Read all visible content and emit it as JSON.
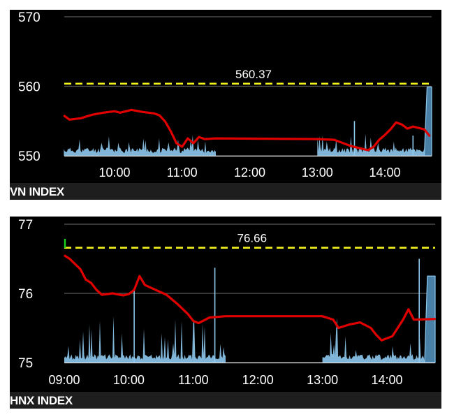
{
  "chart_data": [
    {
      "type": "line",
      "title": "VN INDEX",
      "reference_value": 560.37,
      "reference_label": "560.37",
      "ylim": [
        550,
        570
      ],
      "yticks": [
        "550",
        "560",
        "570"
      ],
      "xticks": [
        "10:00",
        "11:00",
        "12:00",
        "13:00",
        "14:00"
      ],
      "series": [
        {
          "kind": "index",
          "color": "#e00000",
          "points": [
            [
              "09:15",
              555.8
            ],
            [
              "09:20",
              555.2
            ],
            [
              "09:30",
              555.4
            ],
            [
              "09:40",
              555.9
            ],
            [
              "09:50",
              556.2
            ],
            [
              "10:00",
              556.4
            ],
            [
              "10:05",
              556.2
            ],
            [
              "10:15",
              556.6
            ],
            [
              "10:25",
              556.3
            ],
            [
              "10:35",
              556.1
            ],
            [
              "10:40",
              555.8
            ],
            [
              "10:45",
              554.9
            ],
            [
              "10:50",
              553.5
            ],
            [
              "10:55",
              551.8
            ],
            [
              "11:00",
              551.3
            ],
            [
              "11:05",
              552.5
            ],
            [
              "11:10",
              551.8
            ],
            [
              "11:15",
              552.7
            ],
            [
              "11:20",
              552.4
            ],
            [
              "11:30",
              552.5
            ],
            [
              "13:00",
              552.4
            ],
            [
              "13:15",
              552.3
            ],
            [
              "13:30",
              551.4
            ],
            [
              "13:40",
              551.0
            ],
            [
              "13:45",
              550.8
            ],
            [
              "13:50",
              551.3
            ],
            [
              "13:55",
              552.3
            ],
            [
              "14:00",
              553.0
            ],
            [
              "14:05",
              553.8
            ],
            [
              "14:10",
              554.8
            ],
            [
              "14:15",
              554.5
            ],
            [
              "14:20",
              553.9
            ],
            [
              "14:25",
              554.2
            ],
            [
              "14:35",
              553.8
            ],
            [
              "14:40",
              552.8
            ]
          ]
        },
        {
          "kind": "volume",
          "color": "#8ec9ee",
          "sessions": [
            [
              "09:15",
              "11:30"
            ],
            [
              "13:00",
              "14:35"
            ]
          ],
          "spikes": [
            [
              "13:33",
              555.0
            ],
            [
              "14:25",
              552.9
            ]
          ],
          "close_volume": [
            "14:35",
            "14:45",
            559.9
          ]
        }
      ]
    },
    {
      "type": "line",
      "title": "HNX INDEX",
      "reference_value": 76.66,
      "reference_label": "76.66",
      "ylim": [
        75,
        77
      ],
      "yticks": [
        "75",
        "76",
        "77"
      ],
      "xticks": [
        "09:00",
        "10:00",
        "11:00",
        "12:00",
        "13:00",
        "14:00"
      ],
      "series": [
        {
          "kind": "index",
          "color": "#e00000",
          "points": [
            [
              "09:00",
              76.55
            ],
            [
              "09:05",
              76.5
            ],
            [
              "09:15",
              76.35
            ],
            [
              "09:20",
              76.2
            ],
            [
              "09:25",
              76.15
            ],
            [
              "09:30",
              76.05
            ],
            [
              "09:35",
              75.98
            ],
            [
              "09:45",
              76.0
            ],
            [
              "09:55",
              75.97
            ],
            [
              "10:00",
              75.99
            ],
            [
              "10:05",
              76.05
            ],
            [
              "10:10",
              76.25
            ],
            [
              "10:15",
              76.12
            ],
            [
              "10:25",
              76.05
            ],
            [
              "10:35",
              75.98
            ],
            [
              "10:45",
              75.85
            ],
            [
              "10:55",
              75.7
            ],
            [
              "11:00",
              75.6
            ],
            [
              "11:05",
              75.57
            ],
            [
              "11:15",
              75.65
            ],
            [
              "11:30",
              75.67
            ],
            [
              "13:00",
              75.67
            ],
            [
              "13:10",
              75.62
            ],
            [
              "13:15",
              75.5
            ],
            [
              "13:25",
              75.55
            ],
            [
              "13:35",
              75.58
            ],
            [
              "13:45",
              75.5
            ],
            [
              "13:50",
              75.4
            ],
            [
              "13:55",
              75.32
            ],
            [
              "14:05",
              75.38
            ],
            [
              "14:10",
              75.5
            ],
            [
              "14:15",
              75.62
            ],
            [
              "14:20",
              75.77
            ],
            [
              "14:25",
              75.62
            ],
            [
              "14:45",
              75.63
            ]
          ]
        },
        {
          "kind": "volume",
          "color": "#8ec9ee",
          "sessions": [
            [
              "09:00",
              "11:30"
            ],
            [
              "13:00",
              "14:35"
            ]
          ],
          "spikes": [
            [
              "10:05",
              76.05
            ],
            [
              "11:20",
              76.37
            ],
            [
              "14:30",
              76.5
            ]
          ],
          "close_volume": [
            "14:35",
            "14:45",
            76.25
          ]
        }
      ]
    }
  ]
}
